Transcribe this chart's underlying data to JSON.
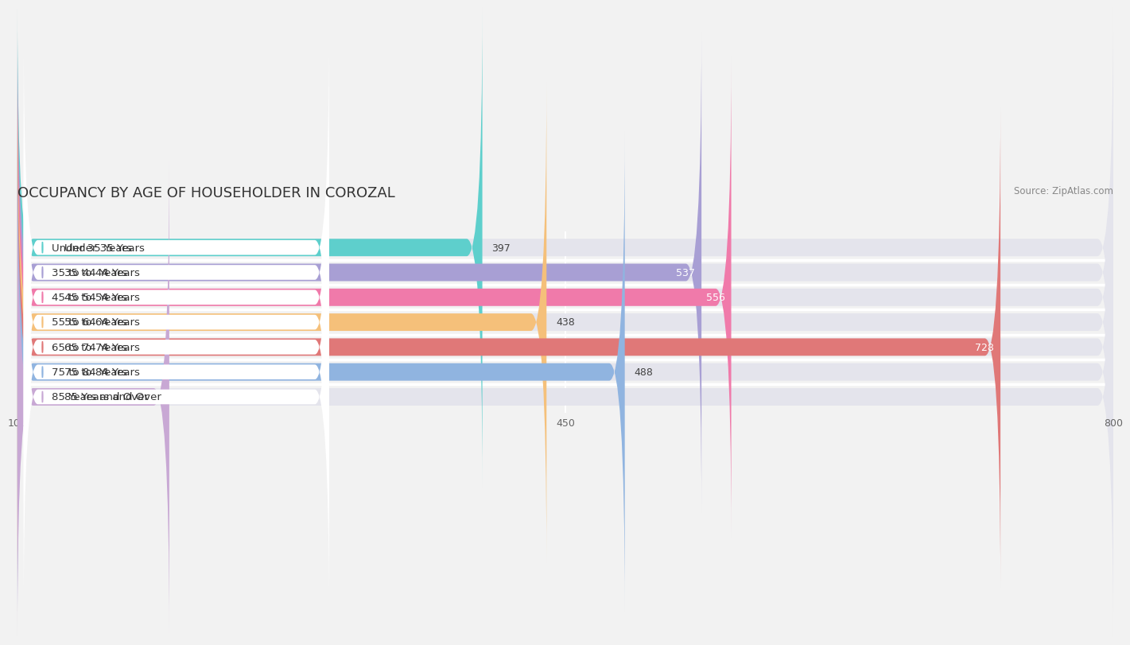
{
  "title": "OCCUPANCY BY AGE OF HOUSEHOLDER IN COROZAL",
  "source": "Source: ZipAtlas.com",
  "categories": [
    "Under 35 Years",
    "35 to 44 Years",
    "45 to 54 Years",
    "55 to 64 Years",
    "65 to 74 Years",
    "75 to 84 Years",
    "85 Years and Over"
  ],
  "values": [
    397,
    537,
    556,
    438,
    728,
    488,
    197
  ],
  "bar_colors": [
    "#5ecfcc",
    "#a89fd4",
    "#f07aaa",
    "#f5c07a",
    "#e07878",
    "#90b4e0",
    "#c8a8d4"
  ],
  "xlim_min": 100,
  "xlim_max": 800,
  "xticks": [
    100,
    450,
    800
  ],
  "background_color": "#f2f2f2",
  "bar_bg_color": "#e4e4ec",
  "label_bg_color": "#ffffff",
  "row_sep_color": "#ffffff",
  "title_fontsize": 13,
  "label_fontsize": 9.5,
  "value_fontsize": 9.0,
  "tick_fontsize": 9.0
}
